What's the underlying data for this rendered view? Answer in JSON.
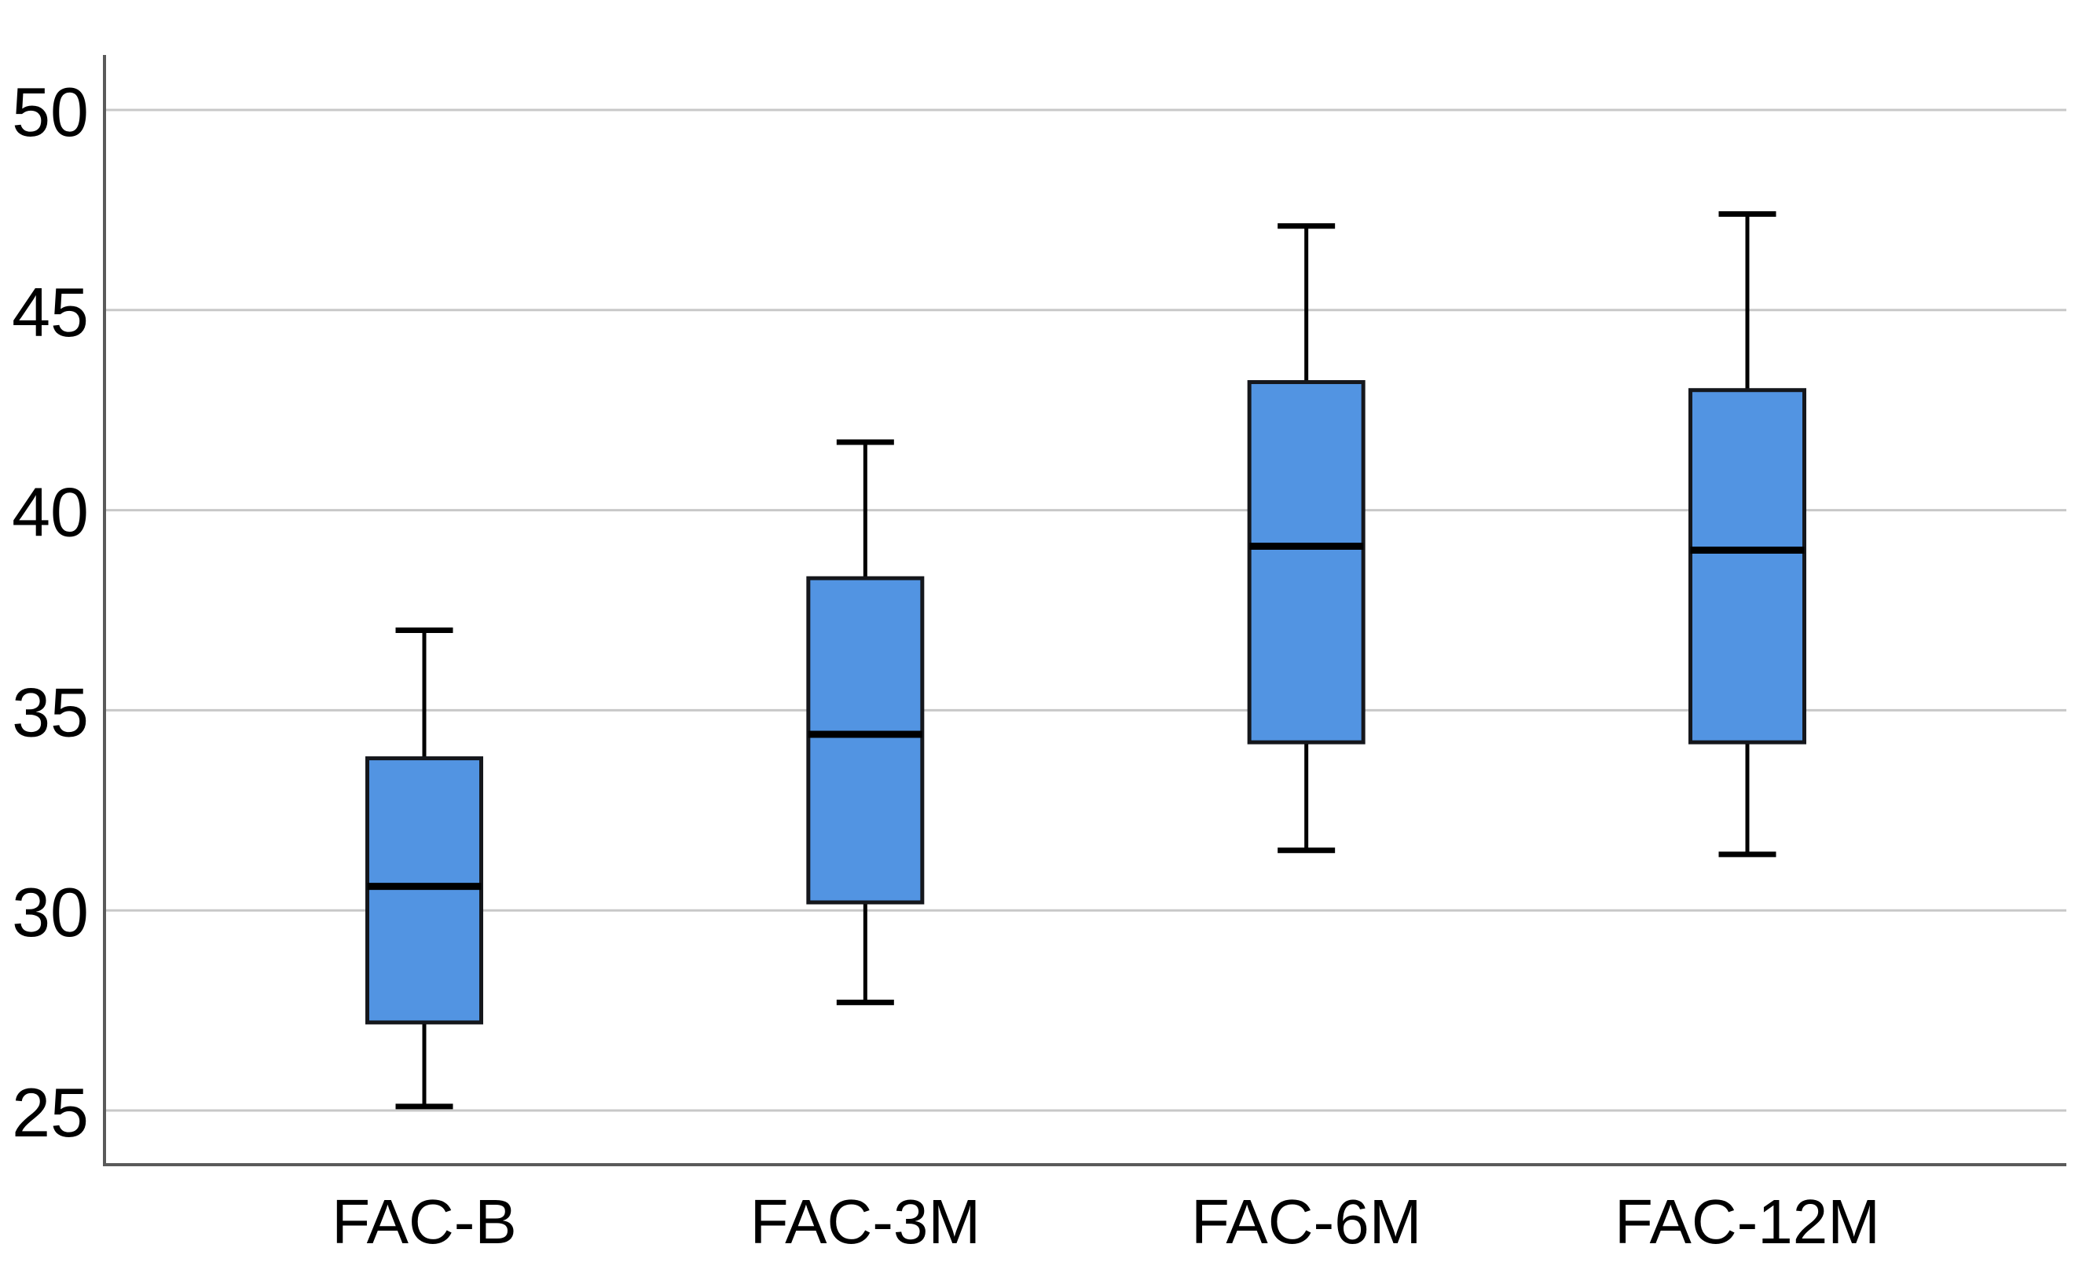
{
  "chart_data": {
    "type": "boxplot",
    "title": "",
    "xlabel": "",
    "ylabel": "",
    "categories": [
      "FAC-B",
      "FAC-3M",
      "FAC-6M",
      "FAC-12M"
    ],
    "series": [
      {
        "name": "FAC-B",
        "min": 25.1,
        "q1": 27.2,
        "median": 30.6,
        "q3": 33.8,
        "max": 37.0
      },
      {
        "name": "FAC-3M",
        "min": 27.7,
        "q1": 30.2,
        "median": 34.4,
        "q3": 38.3,
        "max": 41.7
      },
      {
        "name": "FAC-6M",
        "min": 31.5,
        "q1": 34.2,
        "median": 39.1,
        "q3": 43.2,
        "max": 47.1
      },
      {
        "name": "FAC-12M",
        "min": 31.4,
        "q1": 34.2,
        "median": 39.0,
        "q3": 43.0,
        "max": 47.4
      }
    ],
    "yticks": [
      25,
      30,
      35,
      40,
      45,
      50
    ],
    "ylim": [
      23.6,
      51.4
    ],
    "grid": true,
    "legend": "none",
    "colors": {
      "box_fill": "#5294E2",
      "box_border": "#15171C",
      "median_line": "#000000",
      "whisker_line": "#000000",
      "gridline": "#C8C8C8",
      "axis_line": "#5A5A5A",
      "tick_label": "#000000",
      "background": "#FFFFFF"
    }
  }
}
